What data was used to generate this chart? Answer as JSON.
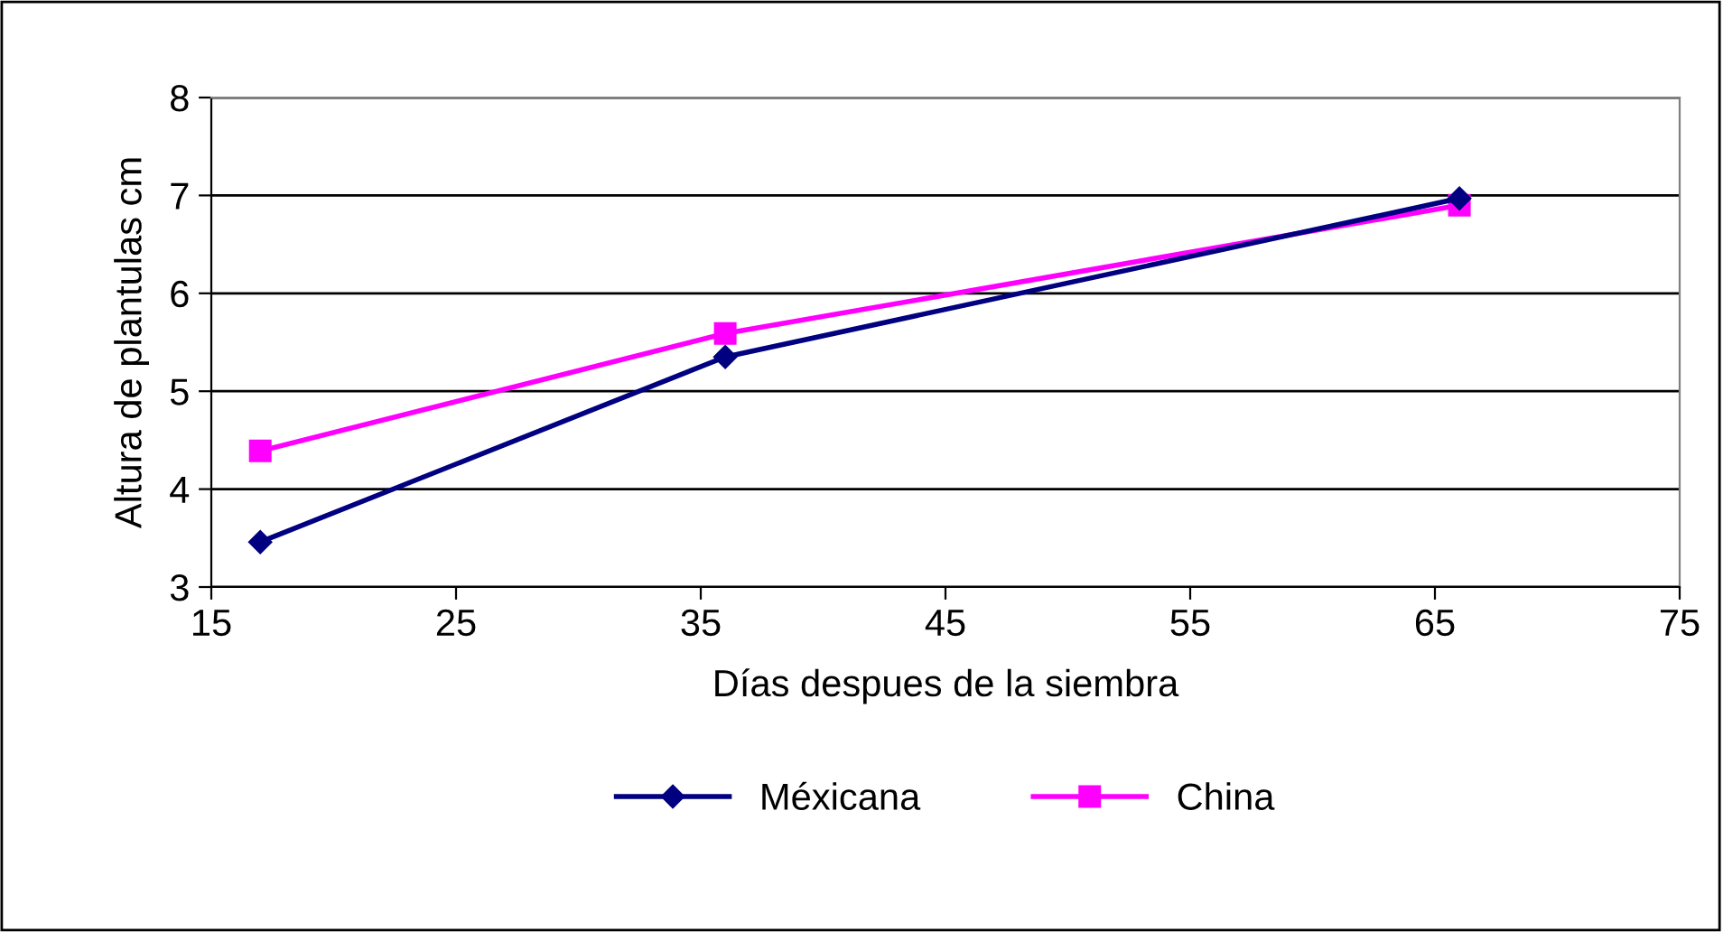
{
  "chart_data": {
    "type": "line",
    "xlabel": "Días despues de la siembra",
    "ylabel": "Altura de plantulas cm",
    "x": [
      17,
      36,
      66
    ],
    "series": [
      {
        "name": "Méxicana",
        "color": "#000080",
        "values": [
          3.46,
          5.35,
          6.97
        ],
        "marker": "diamond"
      },
      {
        "name": "China",
        "color": "#ff00ff",
        "values": [
          4.39,
          5.59,
          6.9
        ],
        "marker": "square"
      }
    ],
    "xlim": [
      15,
      75
    ],
    "xticks": [
      15,
      25,
      35,
      45,
      55,
      65,
      75
    ],
    "ylim": [
      3,
      8
    ],
    "yticks": [
      3,
      4,
      5,
      6,
      7,
      8
    ],
    "grid": "y",
    "legend": "bottom",
    "line_style": "solid"
  }
}
